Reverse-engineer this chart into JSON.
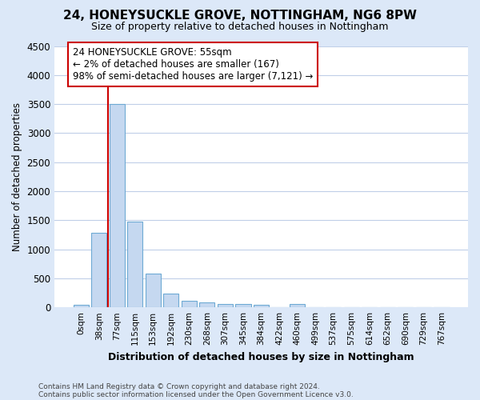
{
  "title": "24, HONEYSUCKLE GROVE, NOTTINGHAM, NG6 8PW",
  "subtitle": "Size of property relative to detached houses in Nottingham",
  "xlabel": "Distribution of detached houses by size in Nottingham",
  "ylabel": "Number of detached properties",
  "bar_labels": [
    "0sqm",
    "38sqm",
    "77sqm",
    "115sqm",
    "153sqm",
    "192sqm",
    "230sqm",
    "268sqm",
    "307sqm",
    "345sqm",
    "384sqm",
    "422sqm",
    "460sqm",
    "499sqm",
    "537sqm",
    "575sqm",
    "614sqm",
    "652sqm",
    "690sqm",
    "729sqm",
    "767sqm"
  ],
  "bar_values": [
    40,
    1280,
    3500,
    1480,
    580,
    240,
    115,
    80,
    55,
    55,
    45,
    0,
    60,
    0,
    0,
    0,
    0,
    0,
    0,
    0,
    0
  ],
  "bar_color": "#c5d8f0",
  "bar_edge_color": "#6eaad4",
  "ylim_max": 4500,
  "yticks": [
    0,
    500,
    1000,
    1500,
    2000,
    2500,
    3000,
    3500,
    4000,
    4500
  ],
  "property_line_x": 1.5,
  "property_line_color": "#cc0000",
  "annotation_line1": "24 HONEYSUCKLE GROVE: 55sqm",
  "annotation_line2": "← 2% of detached houses are smaller (167)",
  "annotation_line3": "98% of semi-detached houses are larger (7,121) →",
  "annotation_box_edge_color": "#cc0000",
  "footer_line1": "Contains HM Land Registry data © Crown copyright and database right 2024.",
  "footer_line2": "Contains public sector information licensed under the Open Government Licence v3.0.",
  "fig_bg_color": "#dce8f8",
  "plot_bg_color": "#ffffff",
  "grid_color": "#c0cfe8"
}
